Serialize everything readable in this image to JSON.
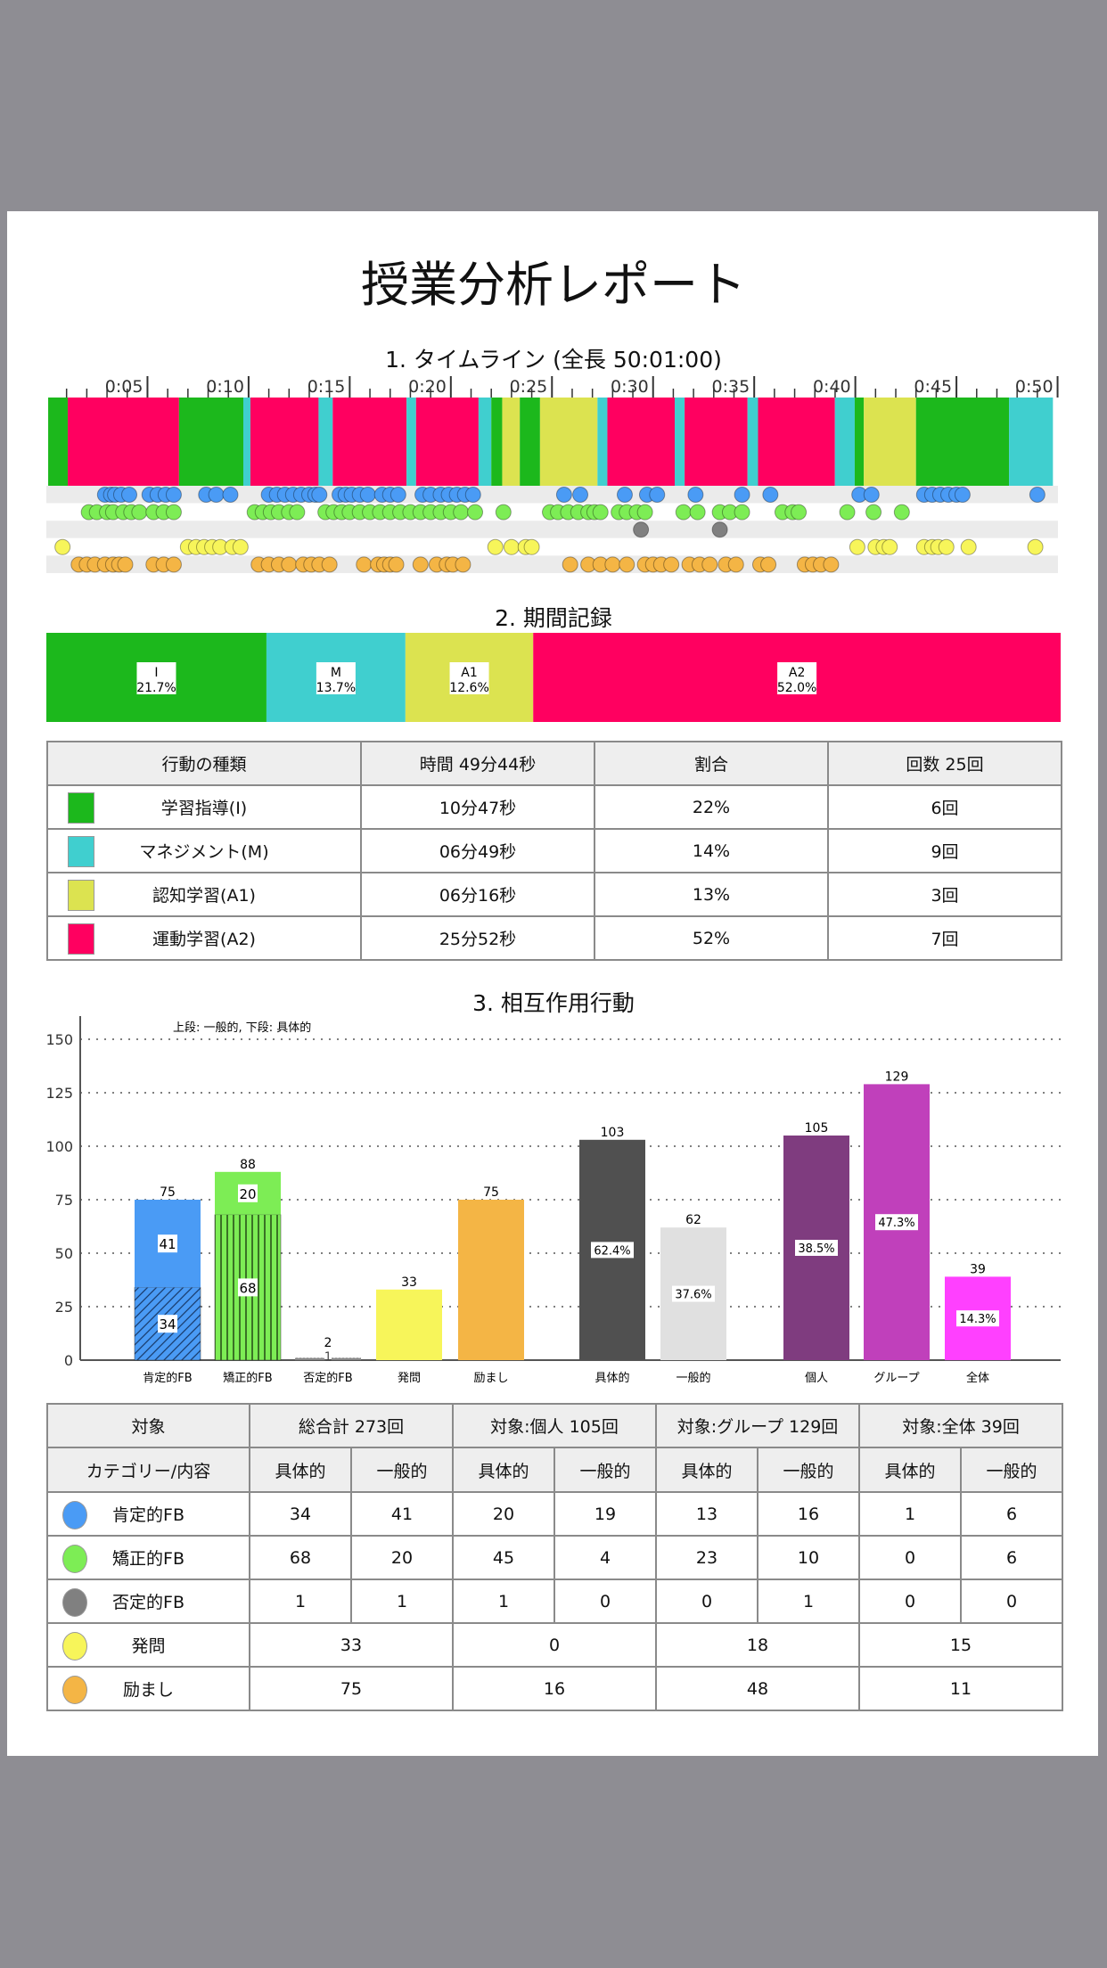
{
  "title": "授業分析レポート",
  "sections": {
    "timeline": "1. タイムライン (全長 50:01:00)",
    "period": "2. 期間記録",
    "interaction": "3. 相互作用行動"
  },
  "colors": {
    "I": "#1cb81c",
    "M": "#40cfcf",
    "A1": "#dce350",
    "A2": "#ff0060",
    "positive_fb": "#4a9bf5",
    "corrective_fb": "#7ded55",
    "negative_fb": "#808080",
    "question": "#f7f55a",
    "encouragement": "#f4b545",
    "specific": "#505050",
    "general": "#e0e0e0",
    "individual": "#7f3c7f",
    "group": "#c040bb",
    "whole": "#ff40ff"
  },
  "timeline": {
    "duration_min": 50.02,
    "tick_labels": [
      "0:05",
      "0:10",
      "0:15",
      "0:20",
      "0:25",
      "0:30",
      "0:35",
      "0:40",
      "0:45",
      "0:50"
    ],
    "segments": [
      {
        "type": "I",
        "start": 0.09,
        "end": 1.06
      },
      {
        "type": "A2",
        "start": 1.06,
        "end": 6.56
      },
      {
        "type": "I",
        "start": 6.56,
        "end": 9.74
      },
      {
        "type": "M",
        "start": 9.74,
        "end": 10.09
      },
      {
        "type": "A2",
        "start": 10.09,
        "end": 13.46
      },
      {
        "type": "M",
        "start": 13.46,
        "end": 14.16
      },
      {
        "type": "A2",
        "start": 14.16,
        "end": 17.81
      },
      {
        "type": "M",
        "start": 17.81,
        "end": 18.28
      },
      {
        "type": "A2",
        "start": 18.28,
        "end": 21.37
      },
      {
        "type": "M",
        "start": 21.37,
        "end": 22.0
      },
      {
        "type": "I",
        "start": 22.0,
        "end": 22.54
      },
      {
        "type": "A1",
        "start": 22.54,
        "end": 23.41
      },
      {
        "type": "I",
        "start": 23.41,
        "end": 24.41
      },
      {
        "type": "A1",
        "start": 24.41,
        "end": 27.25
      },
      {
        "type": "M",
        "start": 27.25,
        "end": 27.74
      },
      {
        "type": "A2",
        "start": 27.74,
        "end": 31.07
      },
      {
        "type": "M",
        "start": 31.07,
        "end": 31.56
      },
      {
        "type": "A2",
        "start": 31.56,
        "end": 34.67
      },
      {
        "type": "M",
        "start": 34.67,
        "end": 35.19
      },
      {
        "type": "A2",
        "start": 35.19,
        "end": 38.99
      },
      {
        "type": "M",
        "start": 38.99,
        "end": 39.97
      },
      {
        "type": "I",
        "start": 39.97,
        "end": 40.42
      },
      {
        "type": "A1",
        "start": 40.42,
        "end": 43.0
      },
      {
        "type": "I",
        "start": 43.0,
        "end": 47.6
      },
      {
        "type": "M",
        "start": 47.6,
        "end": 49.77
      }
    ],
    "events": {
      "positive_fb": [
        2.9,
        3.2,
        3.4,
        3.7,
        4.1,
        5.1,
        5.5,
        5.9,
        6.3,
        7.9,
        8.4,
        9.1,
        11.0,
        11.4,
        11.8,
        12.2,
        12.6,
        13.0,
        13.3,
        13.5,
        14.5,
        14.8,
        15.1,
        15.5,
        15.9,
        16.6,
        17.0,
        17.4,
        18.6,
        19.0,
        19.5,
        19.9,
        20.3,
        20.7,
        21.1,
        25.6,
        26.4,
        28.6,
        29.7,
        30.2,
        32.1,
        34.4,
        35.8,
        40.2,
        40.8,
        43.4,
        43.8,
        44.2,
        44.6,
        45.0,
        45.3,
        49.0
      ],
      "corrective_fb": [
        2.1,
        2.5,
        3.0,
        3.3,
        3.8,
        4.2,
        4.6,
        5.3,
        5.8,
        6.3,
        10.3,
        10.7,
        11.1,
        11.5,
        12.0,
        12.4,
        13.8,
        14.2,
        14.6,
        15.0,
        15.5,
        16.0,
        16.5,
        17.0,
        17.5,
        18.0,
        18.5,
        19.0,
        19.5,
        20.0,
        20.5,
        21.2,
        22.6,
        24.9,
        25.3,
        25.8,
        26.3,
        26.8,
        27.1,
        27.4,
        28.3,
        28.7,
        29.2,
        29.6,
        31.5,
        32.2,
        33.3,
        33.8,
        34.4,
        36.4,
        36.9,
        37.2,
        39.6,
        40.9,
        42.3
      ],
      "negative_fb": [
        29.4,
        33.3
      ],
      "question": [
        0.8,
        7.0,
        7.4,
        7.8,
        8.2,
        8.6,
        9.2,
        9.6,
        22.2,
        23.0,
        23.7,
        24.0,
        40.1,
        41.0,
        41.4,
        41.7,
        43.4,
        43.8,
        44.1,
        44.5,
        45.6,
        48.9
      ],
      "encouragement": [
        1.6,
        2.0,
        2.4,
        2.9,
        3.3,
        3.6,
        3.9,
        5.3,
        5.8,
        6.3,
        10.5,
        11.0,
        11.5,
        12.0,
        12.7,
        13.1,
        13.5,
        14.0,
        15.7,
        16.4,
        16.7,
        17.0,
        17.3,
        18.5,
        19.3,
        19.8,
        20.1,
        20.6,
        25.9,
        26.8,
        27.4,
        28.0,
        28.7,
        29.6,
        30.0,
        30.4,
        30.9,
        31.8,
        32.3,
        32.8,
        33.6,
        34.1,
        35.3,
        35.7,
        37.5,
        37.9,
        38.3,
        38.8
      ]
    }
  },
  "period": {
    "segments": [
      {
        "type": "I",
        "label": "I",
        "pct_text": "21.7%",
        "pct": 21.7
      },
      {
        "type": "M",
        "label": "M",
        "pct_text": "13.7%",
        "pct": 13.7
      },
      {
        "type": "A1",
        "label": "A1",
        "pct_text": "12.6%",
        "pct": 12.6
      },
      {
        "type": "A2",
        "label": "A2",
        "pct_text": "52.0%",
        "pct": 52.0
      }
    ]
  },
  "behavior_table": {
    "headers": [
      "行動の種類",
      "時間  49分44秒",
      "割合",
      "回数 25回"
    ],
    "rows": [
      {
        "type": "I",
        "name": "学習指導(I)",
        "time": "10分47秒",
        "ratio": "22%",
        "count": "6回"
      },
      {
        "type": "M",
        "name": "マネジメント(M)",
        "time": "06分49秒",
        "ratio": "14%",
        "count": "9回"
      },
      {
        "type": "A1",
        "name": "認知学習(A1)",
        "time": "06分16秒",
        "ratio": "13%",
        "count": "3回"
      },
      {
        "type": "A2",
        "name": "運動学習(A2)",
        "time": "25分52秒",
        "ratio": "52%",
        "count": "7回"
      }
    ]
  },
  "chart_data": {
    "type": "bar",
    "note": "上段: 一般的, 下段: 具体的",
    "ylim": [
      0,
      150
    ],
    "yticks": [
      "0",
      "25",
      "50",
      "75",
      "100",
      "125",
      "150"
    ],
    "grid": true,
    "categories": [
      "肯定的FB",
      "矯正的FB",
      "否定的FB",
      "発問",
      "励まし",
      "具体的",
      "一般的",
      "個人",
      "グループ",
      "全体"
    ],
    "bars": [
      {
        "category": "肯定的FB",
        "color": "positive_fb",
        "total": 75,
        "total_label": "75",
        "specific": 34,
        "specific_label": "34",
        "general": 41,
        "general_label": "41",
        "pattern": "diagonal"
      },
      {
        "category": "矯正的FB",
        "color": "corrective_fb",
        "total": 88,
        "total_label": "88",
        "specific": 68,
        "specific_label": "68",
        "general": 20,
        "general_label": "20",
        "pattern": "vertical"
      },
      {
        "category": "否定的FB",
        "color": "negative_fb",
        "total": 2,
        "total_label": "2",
        "specific": 1,
        "specific_label": "1",
        "general": 1,
        "general_label": "",
        "pattern": "dots"
      },
      {
        "category": "発問",
        "color": "question",
        "total": 33,
        "total_label": "33"
      },
      {
        "category": "励まし",
        "color": "encouragement",
        "total": 75,
        "total_label": "75"
      },
      {
        "category": "具体的",
        "color": "specific",
        "total": 103,
        "total_label": "103",
        "pct_label": "62.4%"
      },
      {
        "category": "一般的",
        "color": "general",
        "total": 62,
        "total_label": "62",
        "pct_label": "37.6%"
      },
      {
        "category": "個人",
        "color": "individual",
        "total": 105,
        "total_label": "105",
        "pct_label": "38.5%"
      },
      {
        "category": "グループ",
        "color": "group",
        "total": 129,
        "total_label": "129",
        "pct_label": "47.3%"
      },
      {
        "category": "全体",
        "color": "whole",
        "total": 39,
        "total_label": "39",
        "pct_label": "14.3%"
      }
    ]
  },
  "interaction_table": {
    "header1": [
      "対象",
      "総合計 273回",
      "対象:個人 105回",
      "対象:グループ 129回",
      "対象:全体 39回"
    ],
    "header2": [
      "カテゴリー/内容",
      "具体的",
      "一般的",
      "具体的",
      "一般的",
      "具体的",
      "一般的",
      "具体的",
      "一般的"
    ],
    "split_rows": [
      {
        "color": "positive_fb",
        "name": "肯定的FB",
        "values": [
          "34",
          "41",
          "20",
          "19",
          "13",
          "16",
          "1",
          "6"
        ]
      },
      {
        "color": "corrective_fb",
        "name": "矯正的FB",
        "values": [
          "68",
          "20",
          "45",
          "4",
          "23",
          "10",
          "0",
          "6"
        ]
      },
      {
        "color": "negative_fb",
        "name": "否定的FB",
        "values": [
          "1",
          "1",
          "1",
          "0",
          "0",
          "1",
          "0",
          "0"
        ]
      }
    ],
    "merged_rows": [
      {
        "color": "question",
        "name": "発問",
        "values": [
          "33",
          "0",
          "18",
          "15"
        ]
      },
      {
        "color": "encouragement",
        "name": "励まし",
        "values": [
          "75",
          "16",
          "48",
          "11"
        ]
      }
    ]
  }
}
